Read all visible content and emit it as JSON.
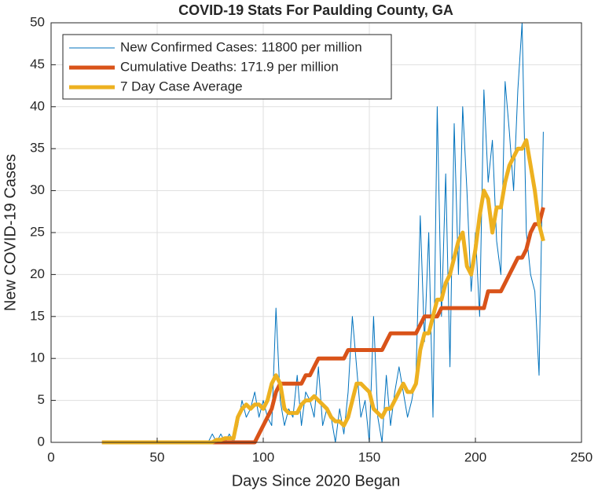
{
  "chart_data": {
    "type": "line",
    "title": "COVID-19 Stats For Paulding County, GA",
    "xlabel": "Days Since 2020 Began",
    "ylabel": "New COVID-19 Cases",
    "x": [
      24,
      26,
      28,
      30,
      32,
      34,
      36,
      38,
      40,
      42,
      44,
      46,
      48,
      50,
      52,
      54,
      56,
      58,
      60,
      62,
      64,
      66,
      68,
      70,
      72,
      74,
      76,
      78,
      80,
      82,
      84,
      86,
      88,
      90,
      92,
      94,
      96,
      98,
      100,
      102,
      104,
      106,
      108,
      110,
      112,
      114,
      116,
      118,
      120,
      122,
      124,
      126,
      128,
      130,
      132,
      134,
      136,
      138,
      140,
      142,
      144,
      146,
      148,
      150,
      152,
      154,
      156,
      158,
      160,
      162,
      164,
      166,
      168,
      170,
      172,
      174,
      176,
      178,
      180,
      182,
      184,
      186,
      188,
      190,
      192,
      194,
      196,
      198,
      200,
      202,
      204,
      206,
      208,
      210,
      212,
      214,
      216,
      218,
      220,
      222,
      224,
      226,
      228,
      230,
      232
    ],
    "series": [
      {
        "name": "New Confirmed Cases: 11800 per million",
        "color": "#0072bd",
        "width": 1,
        "values": [
          0,
          0,
          0,
          0,
          0,
          0,
          0,
          0,
          0,
          0,
          0,
          0,
          0,
          0,
          0,
          0,
          0,
          0,
          0,
          0,
          0,
          0,
          0,
          0,
          0,
          0,
          1,
          0,
          1,
          0,
          1,
          0,
          2,
          5,
          3,
          4,
          6,
          3,
          5,
          3,
          2,
          16,
          5,
          2,
          4,
          3,
          8,
          2,
          6,
          5,
          3,
          9,
          2,
          4,
          3,
          0,
          4,
          1,
          6,
          15,
          9,
          3,
          5,
          0,
          15,
          3,
          0,
          8,
          2,
          6,
          9,
          6,
          3,
          5,
          8,
          27,
          12,
          25,
          3,
          40,
          15,
          32,
          9,
          38,
          20,
          40,
          30,
          18,
          25,
          15,
          42,
          31,
          36,
          24,
          20,
          43,
          37,
          30,
          42,
          50,
          25,
          20,
          18,
          8,
          37
        ]
      },
      {
        "name": "Cumulative Deaths: 171.9 per million",
        "color": "#d95319",
        "width": 5,
        "values": [
          0,
          0,
          0,
          0,
          0,
          0,
          0,
          0,
          0,
          0,
          0,
          0,
          0,
          0,
          0,
          0,
          0,
          0,
          0,
          0,
          0,
          0,
          0,
          0,
          0,
          0,
          0,
          0,
          0,
          0,
          0,
          0,
          0,
          0,
          0,
          0,
          0,
          1,
          2,
          3,
          4,
          6,
          7,
          7,
          7,
          7,
          7,
          7,
          8,
          8,
          9,
          10,
          10,
          10,
          10,
          10,
          10,
          10,
          11,
          11,
          11,
          11,
          11,
          11,
          11,
          11,
          11,
          12,
          13,
          13,
          13,
          13,
          13,
          13,
          13,
          14,
          15,
          15,
          15,
          15,
          16,
          16,
          16,
          16,
          16,
          16,
          16,
          16,
          16,
          16,
          16,
          18,
          18,
          18,
          18,
          19,
          20,
          21,
          22,
          22,
          23,
          25,
          26,
          26,
          28
        ]
      },
      {
        "name": "7 Day Case Average",
        "color": "#edb120",
        "width": 5,
        "values": [
          0,
          0,
          0,
          0,
          0,
          0,
          0,
          0,
          0,
          0,
          0,
          0,
          0,
          0,
          0,
          0,
          0,
          0,
          0,
          0,
          0,
          0,
          0,
          0,
          0,
          0,
          0,
          0.3,
          0.3,
          0.5,
          0.5,
          0.5,
          3,
          4,
          4.5,
          4,
          4.5,
          4.5,
          4,
          5,
          7,
          8,
          7,
          4,
          3.5,
          3.5,
          3.5,
          4.5,
          5,
          5,
          5.5,
          5,
          4.5,
          4,
          3,
          2.5,
          2.5,
          2,
          3,
          5,
          7,
          7,
          6.5,
          6,
          4,
          3.5,
          3,
          4,
          4,
          5,
          6,
          7,
          6,
          6,
          7,
          11,
          13,
          13,
          15,
          17,
          17,
          19,
          20,
          22,
          24,
          25,
          21,
          20,
          23,
          27,
          30,
          29,
          25,
          28,
          28,
          31,
          33,
          34,
          35,
          35,
          36,
          33,
          30,
          26,
          24
        ]
      }
    ],
    "xlim": [
      0,
      250
    ],
    "xticks": [
      0,
      50,
      100,
      150,
      200,
      250
    ],
    "ylim": [
      0,
      50
    ],
    "yticks": [
      0,
      5,
      10,
      15,
      20,
      25,
      30,
      35,
      40,
      45,
      50
    ],
    "grid": true,
    "legend": "upper-left"
  }
}
